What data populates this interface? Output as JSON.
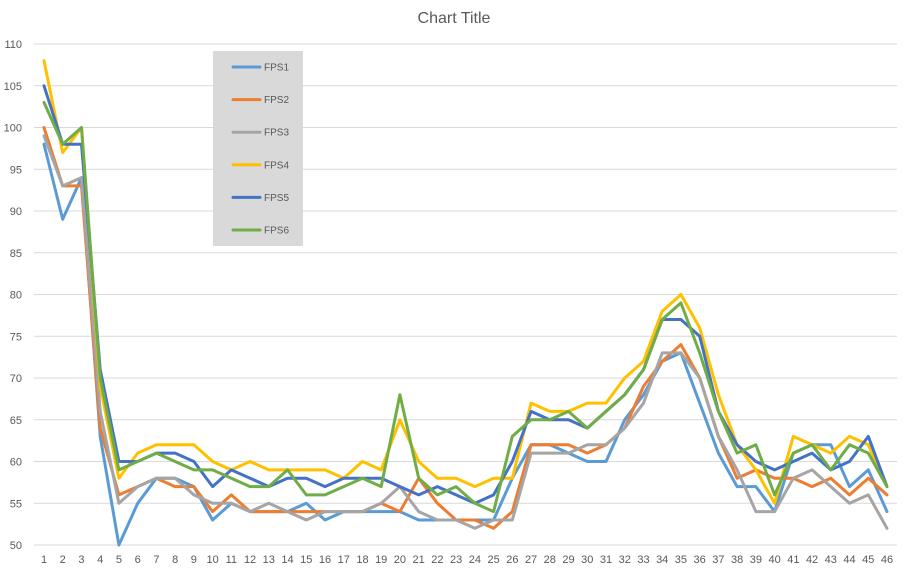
{
  "chart_data": {
    "type": "line",
    "title": "Chart Title",
    "xlabel": "",
    "ylabel": "",
    "ylim": [
      50,
      110
    ],
    "y_ticks": [
      50,
      55,
      60,
      65,
      70,
      75,
      80,
      85,
      90,
      95,
      100,
      105,
      110
    ],
    "grid": true,
    "legend_position": "top-left inside plot",
    "categories": [
      "1",
      "2",
      "3",
      "4",
      "5",
      "6",
      "7",
      "8",
      "9",
      "10",
      "11",
      "12",
      "13",
      "14",
      "15",
      "16",
      "17",
      "18",
      "19",
      "20",
      "21",
      "22",
      "23",
      "24",
      "25",
      "26",
      "27",
      "28",
      "29",
      "30",
      "31",
      "32",
      "33",
      "34",
      "35",
      "36",
      "37",
      "38",
      "39",
      "40",
      "41",
      "42",
      "43",
      "44",
      "45",
      "46"
    ],
    "series": [
      {
        "name": "FPS1",
        "color": "#5B9BD5",
        "values": [
          98,
          89,
          94,
          63,
          50,
          55,
          58,
          58,
          57,
          53,
          55,
          54,
          54,
          54,
          55,
          53,
          54,
          54,
          54,
          54,
          53,
          53,
          53,
          53,
          53,
          58,
          62,
          62,
          61,
          60,
          60,
          65,
          68,
          72,
          73,
          67,
          61,
          57,
          57,
          54,
          61,
          62,
          62,
          57,
          59,
          54
        ]
      },
      {
        "name": "FPS2",
        "color": "#ED7D31",
        "values": [
          100,
          93,
          93,
          64,
          56,
          57,
          58,
          57,
          57,
          54,
          56,
          54,
          54,
          54,
          54,
          54,
          54,
          54,
          55,
          54,
          58,
          55,
          53,
          53,
          52,
          54,
          62,
          62,
          62,
          61,
          62,
          64,
          69,
          72,
          74,
          70,
          63,
          58,
          59,
          58,
          58,
          57,
          58,
          56,
          58,
          56
        ]
      },
      {
        "name": "FPS3",
        "color": "#A5A5A5",
        "values": [
          99,
          93,
          94,
          66,
          55,
          57,
          58,
          58,
          56,
          55,
          55,
          54,
          55,
          54,
          53,
          54,
          54,
          54,
          55,
          57,
          54,
          53,
          53,
          52,
          53,
          53,
          61,
          61,
          61,
          62,
          62,
          64,
          67,
          73,
          73,
          70,
          63,
          59,
          54,
          54,
          58,
          59,
          57,
          55,
          56,
          52
        ]
      },
      {
        "name": "FPS4",
        "color": "#FFC000",
        "values": [
          108,
          97,
          100,
          69,
          58,
          61,
          62,
          62,
          62,
          60,
          59,
          60,
          59,
          59,
          59,
          59,
          58,
          60,
          59,
          65,
          60,
          58,
          58,
          57,
          58,
          58,
          67,
          66,
          66,
          67,
          67,
          70,
          72,
          78,
          80,
          76,
          68,
          62,
          59,
          55,
          63,
          62,
          61,
          63,
          62,
          57
        ]
      },
      {
        "name": "FPS5",
        "color": "#4472C4",
        "values": [
          105,
          98,
          98,
          71,
          60,
          60,
          61,
          61,
          60,
          57,
          59,
          58,
          57,
          58,
          58,
          57,
          58,
          58,
          58,
          57,
          56,
          57,
          56,
          55,
          56,
          60,
          66,
          65,
          65,
          64,
          66,
          68,
          71,
          77,
          77,
          75,
          66,
          62,
          60,
          59,
          60,
          61,
          59,
          60,
          63,
          57
        ]
      },
      {
        "name": "FPS6",
        "color": "#70AD47",
        "values": [
          103,
          98,
          100,
          70,
          59,
          60,
          61,
          60,
          59,
          59,
          58,
          57,
          57,
          59,
          56,
          56,
          57,
          58,
          57,
          68,
          58,
          56,
          57,
          55,
          54,
          63,
          65,
          65,
          66,
          64,
          66,
          68,
          71,
          77,
          79,
          73,
          66,
          61,
          62,
          56,
          61,
          62,
          59,
          62,
          61,
          57
        ]
      }
    ]
  }
}
